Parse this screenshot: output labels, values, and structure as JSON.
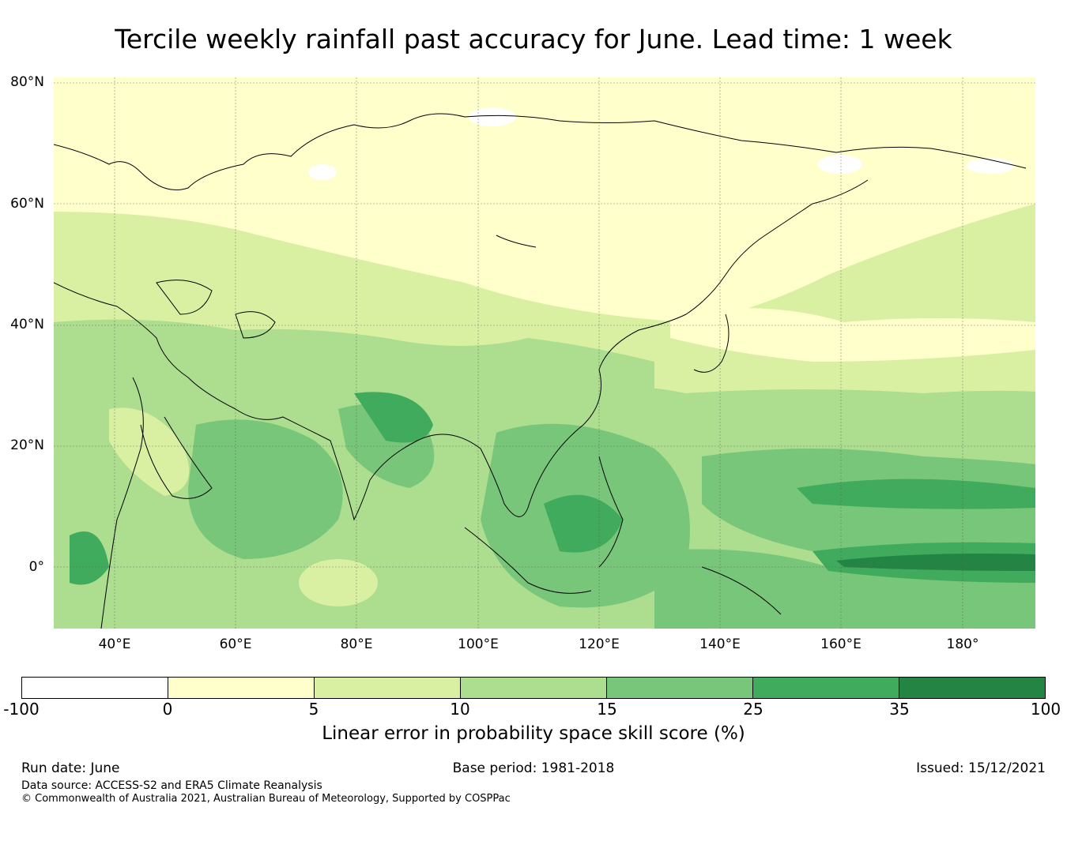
{
  "title": "Tercile weekly rainfall past accuracy for June. Lead time: 1 week",
  "map": {
    "lat_labels": [
      "80°N",
      "60°N",
      "40°N",
      "20°N",
      "0°"
    ],
    "lon_labels": [
      "40°E",
      "60°E",
      "80°E",
      "100°E",
      "120°E",
      "140°E",
      "160°E",
      "180°"
    ],
    "extent": {
      "lon": [
        30,
        192
      ],
      "lat": [
        -10,
        81
      ]
    }
  },
  "colorbar": {
    "label": "Linear error in probability space skill score (%)",
    "ticks": [
      "-100",
      "0",
      "5",
      "10",
      "15",
      "25",
      "35",
      "100"
    ],
    "colors": [
      "#ffffff",
      "#ffffcc",
      "#d9f0a3",
      "#addd8e",
      "#78c679",
      "#41ab5d",
      "#238443"
    ]
  },
  "footer": {
    "run_date": "Run date: June",
    "base_period": "Base period: 1981-2018",
    "issued": "Issued: 15/12/2021",
    "data_source": "Data source: ACCESS-S2 and ERA5 Climate Reanalysis",
    "copyright": "© Commonwealth of Australia 2021, Australian Bureau of Meteorology, Supported by COSPPac"
  }
}
